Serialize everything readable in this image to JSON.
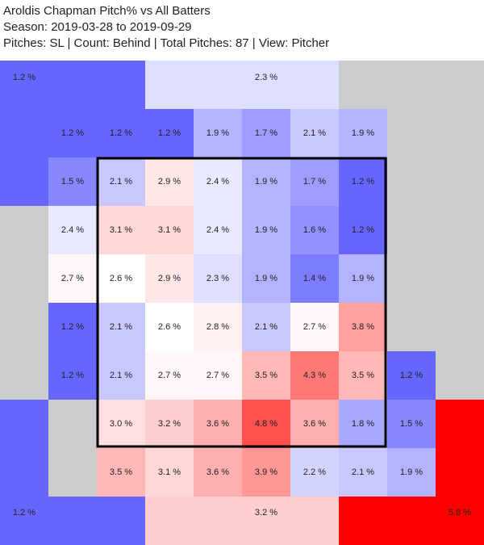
{
  "header": {
    "title": "Aroldis Chapman Pitch% vs All Batters",
    "season": "Season: 2019-03-28 to 2019-09-29",
    "filters": "Pitches: SL | Count: Behind | Total Pitches: 87 | View: Pitcher"
  },
  "colors": {
    "low": "#6666ff",
    "mid": "#ffffff",
    "high": "#ff0000",
    "empty": "#cccccc",
    "zone_border": "#000000"
  },
  "chart_data": {
    "type": "heatmap",
    "unit": "%",
    "color_scale": {
      "min": 1.2,
      "mid": 2.6,
      "max": 5.8
    },
    "inner_grid": {
      "rows": [
        [
          "1.2 %",
          "1.2 %",
          "1.2 %",
          "1.9 %",
          "1.7 %",
          "2.1 %",
          "1.9 %",
          ""
        ],
        [
          "1.5 %",
          "2.1 %",
          "2.9 %",
          "2.4 %",
          "1.9 %",
          "1.7 %",
          "1.2 %",
          ""
        ],
        [
          "2.4 %",
          "3.1 %",
          "3.1 %",
          "2.4 %",
          "1.9 %",
          "1.6 %",
          "1.2 %",
          ""
        ],
        [
          "2.7 %",
          "2.6 %",
          "2.9 %",
          "2.3 %",
          "1.9 %",
          "1.4 %",
          "1.9 %",
          ""
        ],
        [
          "1.2 %",
          "2.1 %",
          "2.6 %",
          "2.8 %",
          "2.1 %",
          "2.7 %",
          "3.8 %",
          ""
        ],
        [
          "1.2 %",
          "2.1 %",
          "2.7 %",
          "2.7 %",
          "3.5 %",
          "4.3 %",
          "3.5 %",
          "1.2 %"
        ],
        [
          "",
          "3.0 %",
          "3.2 %",
          "3.6 %",
          "4.8 %",
          "3.6 %",
          "1.8 %",
          "1.5 %"
        ],
        [
          "",
          "3.5 %",
          "3.1 %",
          "3.6 %",
          "3.9 %",
          "2.2 %",
          "2.1 %",
          "1.9 %"
        ]
      ]
    },
    "outer_regions": [
      {
        "name": "top-left",
        "value": "1.2 %"
      },
      {
        "name": "top",
        "value": "2.3 %"
      },
      {
        "name": "bottom-left",
        "value": "1.2 %"
      },
      {
        "name": "bottom",
        "value": "3.2 %"
      },
      {
        "name": "bottom-right",
        "value": "5.8 %"
      }
    ]
  }
}
